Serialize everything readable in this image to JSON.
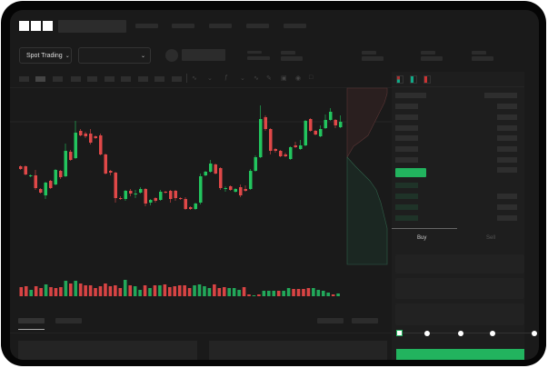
{
  "header": {
    "logo": "OKX"
  },
  "controls": {
    "market_selector": "Spot Trading",
    "pair_selector": ""
  },
  "orderbook_view_icons": [
    "orderbook-both-icon",
    "orderbook-bids-icon",
    "orderbook-asks-icon"
  ],
  "trade_panel": {
    "tabs": [
      "Buy",
      "Sell"
    ],
    "active_tab": "Buy",
    "slider_percent": 0,
    "slider_stops": 5
  },
  "colors": {
    "up": "#22c55e",
    "down": "#e04848",
    "background": "#1a1a1a",
    "accent": "#22b35e"
  },
  "chart_data": {
    "type": "candlestick",
    "columns": [
      "open",
      "high",
      "low",
      "close"
    ],
    "candles": [
      [
        58,
        59,
        54,
        55
      ],
      [
        58,
        59,
        48,
        49
      ],
      [
        47,
        49,
        46,
        48
      ],
      [
        48,
        54,
        32,
        34
      ],
      [
        33,
        34,
        28,
        29
      ],
      [
        26,
        41,
        22,
        40
      ],
      [
        42,
        43,
        33,
        34
      ],
      [
        38,
        55,
        37,
        54
      ],
      [
        53,
        54,
        44,
        46
      ],
      [
        47,
        83,
        46,
        75
      ],
      [
        74,
        76,
        64,
        65
      ],
      [
        67,
        108,
        66,
        95
      ],
      [
        97,
        99,
        91,
        92
      ],
      [
        94,
        96,
        89,
        91
      ],
      [
        94,
        99,
        82,
        84
      ],
      [
        91,
        92,
        88,
        89
      ],
      [
        92,
        94,
        70,
        71
      ],
      [
        71,
        72,
        49,
        50
      ],
      [
        53,
        54,
        48,
        51
      ],
      [
        51,
        52,
        18,
        23
      ],
      [
        23,
        25,
        21,
        22
      ],
      [
        22,
        32,
        20,
        31
      ],
      [
        31,
        33,
        25,
        28
      ],
      [
        27,
        32,
        23,
        28
      ],
      [
        29,
        35,
        28,
        33
      ],
      [
        33,
        34,
        14,
        17
      ],
      [
        18,
        22,
        15,
        21
      ],
      [
        23,
        24,
        18,
        20
      ],
      [
        21,
        32,
        20,
        30
      ],
      [
        30,
        31,
        28,
        29
      ],
      [
        31,
        32,
        18,
        22
      ],
      [
        31,
        32,
        20,
        23
      ],
      [
        23,
        24,
        21,
        22
      ],
      [
        22,
        24,
        10,
        11
      ],
      [
        13,
        14,
        10,
        11
      ],
      [
        11,
        18,
        10,
        17
      ],
      [
        18,
        50,
        16,
        47
      ],
      [
        48,
        53,
        47,
        52
      ],
      [
        52,
        65,
        51,
        61
      ],
      [
        60,
        61,
        49,
        50
      ],
      [
        56,
        57,
        32,
        34
      ],
      [
        33,
        36,
        30,
        34
      ],
      [
        36,
        37,
        31,
        32
      ],
      [
        30,
        34,
        29,
        33
      ],
      [
        35,
        38,
        24,
        26
      ],
      [
        33,
        37,
        30,
        31
      ],
      [
        33,
        55,
        32,
        53
      ],
      [
        53,
        70,
        52,
        68
      ],
      [
        68,
        125,
        67,
        110
      ],
      [
        112,
        114,
        97,
        99
      ],
      [
        99,
        100,
        71,
        75
      ],
      [
        77,
        78,
        73,
        75
      ],
      [
        75,
        76,
        68,
        69
      ],
      [
        71,
        73,
        68,
        69
      ],
      [
        66,
        80,
        65,
        79
      ],
      [
        81,
        85,
        78,
        79
      ],
      [
        77,
        87,
        76,
        81
      ],
      [
        81,
        109,
        80,
        108
      ],
      [
        110,
        111,
        96,
        97
      ],
      [
        97,
        98,
        92,
        93
      ],
      [
        91,
        103,
        90,
        99
      ],
      [
        100,
        115,
        99,
        109
      ],
      [
        109,
        122,
        108,
        118
      ],
      [
        109,
        110,
        100,
        103
      ],
      [
        101,
        114,
        100,
        107
      ]
    ],
    "volume": [
      [
        "down",
        10
      ],
      [
        "down",
        11
      ],
      [
        "up",
        7
      ],
      [
        "down",
        11
      ],
      [
        "down",
        9
      ],
      [
        "up",
        13
      ],
      [
        "down",
        10
      ],
      [
        "down",
        9
      ],
      [
        "down",
        10
      ],
      [
        "up",
        17
      ],
      [
        "down",
        14
      ],
      [
        "up",
        17
      ],
      [
        "down",
        14
      ],
      [
        "down",
        12
      ],
      [
        "down",
        12
      ],
      [
        "down",
        9
      ],
      [
        "down",
        11
      ],
      [
        "down",
        14
      ],
      [
        "down",
        11
      ],
      [
        "down",
        12
      ],
      [
        "down",
        9
      ],
      [
        "up",
        18
      ],
      [
        "down",
        12
      ],
      [
        "up",
        11
      ],
      [
        "up",
        7
      ],
      [
        "down",
        12
      ],
      [
        "up",
        9
      ],
      [
        "down",
        12
      ],
      [
        "up",
        12
      ],
      [
        "down",
        13
      ],
      [
        "down",
        10
      ],
      [
        "down",
        11
      ],
      [
        "down",
        12
      ],
      [
        "down",
        12
      ],
      [
        "down",
        9
      ],
      [
        "up",
        12
      ],
      [
        "up",
        13
      ],
      [
        "up",
        11
      ],
      [
        "up",
        9
      ],
      [
        "down",
        13
      ],
      [
        "down",
        9
      ],
      [
        "down",
        10
      ],
      [
        "up",
        9
      ],
      [
        "up",
        9
      ],
      [
        "up",
        7
      ],
      [
        "down",
        10
      ],
      [
        "down",
        2
      ],
      [
        "up",
        1
      ],
      [
        "down",
        2
      ],
      [
        "up",
        6
      ],
      [
        "up",
        6
      ],
      [
        "up",
        6
      ],
      [
        "down",
        6
      ],
      [
        "up",
        6
      ],
      [
        "up",
        9
      ],
      [
        "down",
        8
      ],
      [
        "down",
        8
      ],
      [
        "down",
        8
      ],
      [
        "down",
        9
      ],
      [
        "up",
        9
      ],
      [
        "up",
        7
      ],
      [
        "up",
        6
      ],
      [
        "up",
        4
      ],
      [
        "down",
        2
      ],
      [
        "up",
        3
      ]
    ]
  }
}
